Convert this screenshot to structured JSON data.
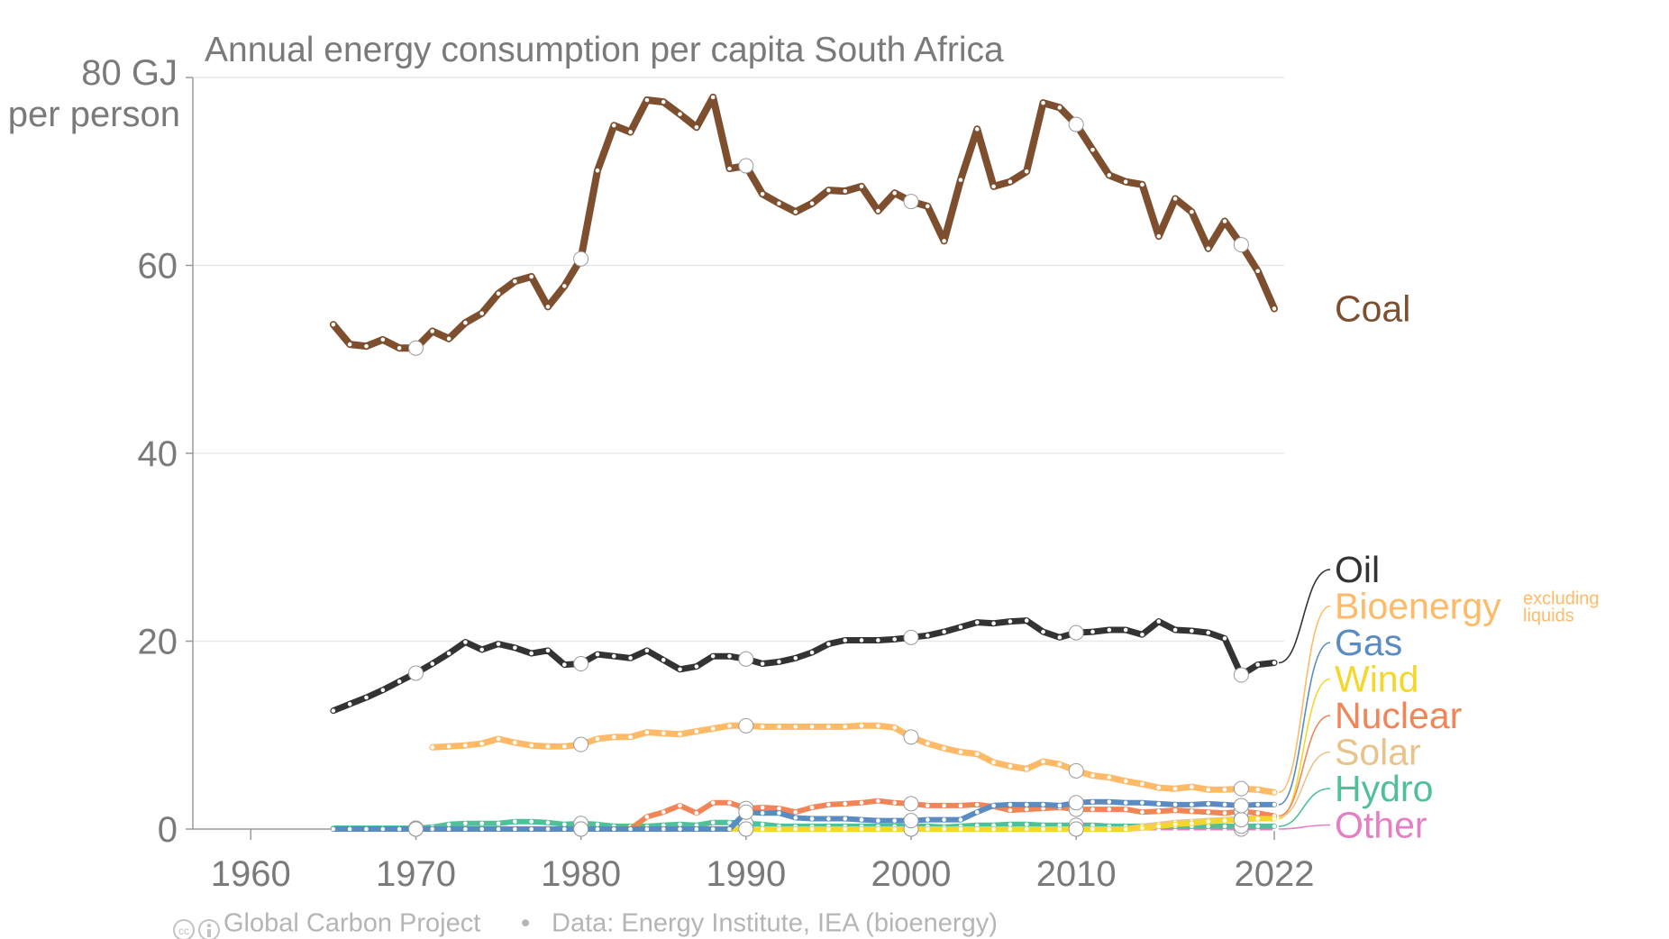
{
  "chart_data": {
    "type": "line",
    "title": "Annual energy consumption per capita South Africa",
    "y_unit_label": [
      "80 GJ",
      "per person"
    ],
    "xlabel": "",
    "ylabel": "",
    "xlim": [
      1956,
      2022
    ],
    "ylim": [
      0,
      80
    ],
    "x_ticks": [
      "1960",
      "1970",
      "1980",
      "1990",
      "2000",
      "2010",
      "2022"
    ],
    "y_ticks": [
      "0",
      "20",
      "40",
      "60"
    ],
    "grid": "horizontal",
    "legend": "right, labels at line ends",
    "x": [
      1965,
      1966,
      1967,
      1968,
      1969,
      1970,
      1971,
      1972,
      1973,
      1974,
      1975,
      1976,
      1977,
      1978,
      1979,
      1980,
      1981,
      1982,
      1983,
      1984,
      1985,
      1986,
      1987,
      1988,
      1989,
      1990,
      1991,
      1992,
      1993,
      1994,
      1995,
      1996,
      1997,
      1998,
      1999,
      2000,
      2001,
      2002,
      2003,
      2004,
      2005,
      2006,
      2007,
      2008,
      2009,
      2010,
      2011,
      2012,
      2013,
      2014,
      2015,
      2016,
      2017,
      2018,
      2019,
      2020,
      2021,
      2022
    ],
    "series": [
      {
        "name": "Coal",
        "color": "#7d4f2f",
        "values": [
          53.7,
          51.6,
          51.4,
          52.1,
          51.2,
          51.2,
          53.0,
          52.2,
          53.9,
          54.9,
          57.0,
          58.3,
          58.8,
          55.6,
          57.8,
          60.7,
          70.1,
          74.9,
          74.2,
          77.6,
          77.4,
          76.1,
          74.7,
          77.9,
          70.3,
          70.6,
          67.6,
          66.6,
          65.7,
          66.6,
          68.0,
          67.9,
          68.4,
          65.8,
          67.7,
          66.8,
          66.3,
          62.6,
          69.1,
          74.5,
          68.4,
          68.9,
          70.0,
          77.3,
          76.8,
          75.0,
          72.3,
          69.6,
          68.9,
          68.6,
          63.1,
          67.1,
          65.7,
          61.8,
          64.7,
          62.2,
          59.4,
          55.4
        ]
      },
      {
        "name": "Oil",
        "color": "#333333",
        "values": [
          12.6,
          13.3,
          14.0,
          14.8,
          15.7,
          16.6,
          17.6,
          18.7,
          19.9,
          19.1,
          19.7,
          19.3,
          18.7,
          19.0,
          17.5,
          17.6,
          18.6,
          18.4,
          18.2,
          19.0,
          18.0,
          17.0,
          17.3,
          18.4,
          18.4,
          18.1,
          17.6,
          17.8,
          18.2,
          18.8,
          19.7,
          20.1,
          20.1,
          20.1,
          20.2,
          20.4,
          20.6,
          21.0,
          21.5,
          22.0,
          21.9,
          22.1,
          22.2,
          21.0,
          20.4,
          20.9,
          21.0,
          21.2,
          21.2,
          20.7,
          22.1,
          21.2,
          21.1,
          20.9,
          20.3,
          16.4,
          17.5,
          17.7
        ]
      },
      {
        "name": "Bioenergy",
        "note": [
          "excluding",
          "liquids"
        ],
        "color": "#ffba68",
        "values": [
          null,
          null,
          null,
          null,
          null,
          null,
          8.7,
          8.8,
          8.9,
          9.1,
          9.6,
          9.2,
          8.9,
          8.8,
          8.8,
          9.0,
          9.6,
          9.8,
          9.8,
          10.3,
          10.2,
          10.1,
          10.4,
          10.7,
          11.0,
          11.0,
          10.9,
          10.9,
          10.9,
          10.9,
          10.9,
          10.9,
          11.0,
          11.0,
          10.8,
          9.8,
          9.1,
          8.6,
          8.2,
          8.0,
          7.1,
          6.7,
          6.4,
          7.2,
          6.9,
          6.2,
          5.7,
          5.5,
          5.1,
          4.8,
          4.4,
          4.3,
          4.5,
          4.2,
          4.2,
          4.3,
          4.2,
          3.9
        ]
      },
      {
        "name": "Gas",
        "color": "#5a8bc2",
        "values": [
          0,
          0,
          0,
          0,
          0,
          0,
          0,
          0,
          0,
          0,
          0,
          0,
          0,
          0,
          0,
          0,
          0,
          0,
          0,
          0,
          0,
          0,
          0,
          0,
          0,
          1.8,
          1.7,
          1.7,
          1.2,
          1.1,
          1.1,
          1.1,
          1.0,
          0.9,
          0.9,
          0.9,
          1.0,
          1.0,
          1.0,
          1.8,
          2.5,
          2.6,
          2.6,
          2.6,
          2.5,
          2.8,
          2.9,
          2.9,
          2.8,
          2.8,
          2.7,
          2.6,
          2.6,
          2.7,
          2.6,
          2.5,
          2.6,
          2.6
        ]
      },
      {
        "name": "Wind",
        "color": "#f5d72c",
        "values": [
          0,
          0,
          0,
          0,
          0,
          0,
          0,
          0,
          0,
          0,
          0,
          0,
          0,
          0,
          0,
          0,
          0,
          0,
          0,
          0,
          0,
          0,
          0,
          0,
          0,
          0,
          0,
          0,
          0,
          0,
          0,
          0,
          0,
          0,
          0,
          0,
          0,
          0,
          0,
          0,
          0,
          0,
          0,
          0,
          0,
          0,
          0,
          0,
          0,
          0.1,
          0.3,
          0.5,
          0.6,
          0.8,
          0.9,
          1.0,
          1.1,
          1.1
        ]
      },
      {
        "name": "Nuclear",
        "color": "#f28558",
        "values": [
          0,
          0,
          0,
          0,
          0,
          0,
          0,
          0,
          0,
          0,
          0,
          0,
          0,
          0,
          0,
          0,
          0,
          0,
          0,
          1.3,
          1.8,
          2.5,
          1.7,
          2.8,
          2.8,
          2.2,
          2.3,
          2.2,
          1.8,
          2.3,
          2.6,
          2.7,
          2.8,
          3.0,
          2.8,
          2.7,
          2.5,
          2.5,
          2.5,
          2.6,
          2.4,
          2.0,
          2.1,
          2.2,
          2.3,
          2.1,
          2.1,
          2.1,
          2.1,
          1.8,
          1.9,
          2.0,
          1.9,
          1.8,
          1.7,
          1.9,
          1.7,
          1.4
        ]
      },
      {
        "name": "Solar",
        "color": "#e8c48c",
        "values": [
          0,
          0,
          0,
          0,
          0,
          0,
          0,
          0,
          0,
          0,
          0,
          0,
          0,
          0,
          0,
          0,
          0,
          0,
          0,
          0,
          0,
          0,
          0,
          0,
          0,
          0,
          0,
          0,
          0,
          0,
          0,
          0,
          0,
          0,
          0,
          0,
          0,
          0,
          0,
          0,
          0,
          0,
          0,
          0,
          0,
          0,
          0,
          0,
          0,
          0.3,
          0.5,
          0.7,
          0.8,
          0.9,
          1.0,
          1.1,
          1.2,
          1.3
        ]
      },
      {
        "name": "Hydro",
        "color": "#4fc09a",
        "values": [
          0.1,
          0.1,
          0.1,
          0.1,
          0.1,
          0.1,
          0.2,
          0.5,
          0.6,
          0.6,
          0.6,
          0.8,
          0.8,
          0.7,
          0.5,
          0.6,
          0.5,
          0.3,
          0.3,
          0.3,
          0.4,
          0.5,
          0.4,
          0.7,
          0.7,
          0.6,
          0.5,
          0.3,
          0.3,
          0.3,
          0.3,
          0.3,
          0.3,
          0.3,
          0.3,
          0.3,
          0.3,
          0.2,
          0.3,
          0.4,
          0.4,
          0.5,
          0.5,
          0.4,
          0.4,
          0.4,
          0.4,
          0.3,
          0.3,
          0.3,
          0.3,
          0.3,
          0.3,
          0.3,
          0.3,
          0.3,
          0.3,
          0.3
        ]
      },
      {
        "name": "Other",
        "color": "#e57fc4",
        "values": [
          0,
          0,
          0,
          0,
          0,
          0,
          0,
          0,
          0,
          0,
          0,
          0,
          0,
          0,
          0,
          0,
          0,
          0,
          0,
          0,
          0,
          0,
          0,
          0,
          0,
          0,
          0,
          0,
          0,
          0,
          0,
          0,
          0,
          0,
          0,
          0,
          0,
          0,
          0,
          0,
          0,
          0,
          0,
          0,
          0,
          0,
          0,
          0,
          0,
          0,
          0,
          0,
          0,
          0,
          0,
          0,
          0,
          0
        ]
      }
    ],
    "footer": {
      "source_org": "Global Carbon Project",
      "separator": "•",
      "data_source": "Data: Energy Institute, IEA (bioenergy)"
    }
  }
}
